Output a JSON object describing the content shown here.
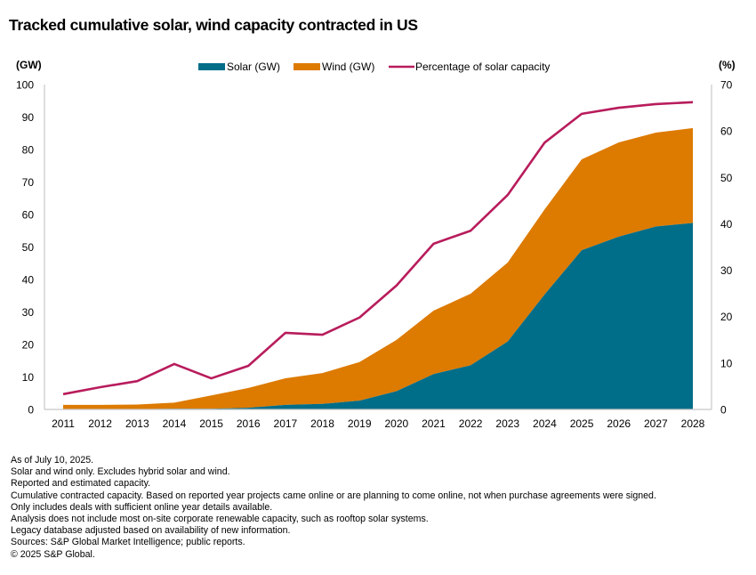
{
  "title": "Tracked cumulative solar, wind capacity contracted in US",
  "footnotes": [
    "As of July 10, 2025.",
    "Solar and wind only. Excludes hybrid solar and wind.",
    "Reported and estimated capacity.",
    "Cumulative contracted capacity. Based on reported year projects came online or are planning to come online, not when purchase agreements were signed.",
    "Only includes deals with sufficient online year details available.",
    "Analysis does not include most on-site corporate renewable capacity, such as rooftop solar systems.",
    "Legacy database adjusted based on availability of new information.",
    "Sources: S&P Global Market Intelligence; public reports.",
    "© 2025 S&P Global."
  ],
  "colors": {
    "solar": "#006d89",
    "wind": "#dd7a00",
    "percent": "#b81c5c",
    "axis": "#c8c8c8"
  },
  "chart_data": {
    "type": "area",
    "stacked": true,
    "title": "Tracked cumulative solar, wind capacity contracted in US",
    "x": [
      "2011",
      "2012",
      "2013",
      "2014",
      "2015",
      "2016",
      "2017",
      "2018",
      "2019",
      "2020",
      "2021",
      "2022",
      "2023",
      "2024",
      "2025",
      "2026",
      "2027",
      "2028"
    ],
    "series": [
      {
        "name": "Solar (GW)",
        "type": "area",
        "axis": "left",
        "values": [
          0.1,
          0.1,
          0.1,
          0.2,
          0.2,
          0.5,
          1.4,
          1.7,
          2.7,
          5.6,
          10.9,
          13.6,
          20.9,
          35.4,
          49.0,
          53.2,
          56.3,
          57.4
        ]
      },
      {
        "name": "Wind (GW)",
        "type": "area",
        "axis": "left",
        "values": [
          1.3,
          1.3,
          1.4,
          1.9,
          4.1,
          6.1,
          8.2,
          9.5,
          11.9,
          15.8,
          19.5,
          22.0,
          24.3,
          26.2,
          28.0,
          29.0,
          28.9,
          29.2
        ]
      },
      {
        "name": "Percentage of solar capacity",
        "type": "line",
        "axis": "right",
        "values": [
          3.3,
          4.8,
          6.1,
          9.8,
          6.7,
          9.4,
          16.5,
          16.1,
          19.8,
          26.7,
          35.7,
          38.5,
          46.2,
          57.5,
          63.7,
          65.0,
          65.8,
          66.2
        ]
      }
    ],
    "yaxis_left": {
      "label": "(GW)",
      "range": [
        0,
        100
      ],
      "ticks": [
        "0",
        "10",
        "20",
        "30",
        "40",
        "50",
        "60",
        "70",
        "80",
        "90",
        "100"
      ]
    },
    "yaxis_right": {
      "label": "(%)",
      "range": [
        0,
        70
      ],
      "ticks": [
        "0",
        "10",
        "20",
        "30",
        "40",
        "50",
        "60",
        "70"
      ]
    },
    "legend": {
      "placement": "top-center",
      "entries": [
        "Solar (GW)",
        "Wind (GW)",
        "Percentage of solar capacity"
      ]
    },
    "grid": false
  }
}
